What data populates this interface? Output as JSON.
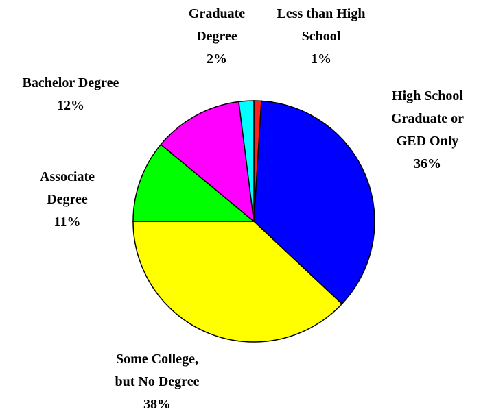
{
  "chart_data": {
    "type": "pie",
    "categories": [
      "Less than High\nSchool",
      "High School\nGraduate or\nGED Only",
      "Some College,\nbut No Degree",
      "Associate\nDegree",
      "Bachelor Degree",
      "Graduate\nDegree"
    ],
    "values": [
      1,
      36,
      38,
      11,
      12,
      2
    ],
    "value_labels": [
      "1%",
      "36%",
      "38%",
      "11%",
      "12%",
      "2%"
    ],
    "colors": [
      "#ff2020",
      "#0000ff",
      "#ffff00",
      "#00ff00",
      "#ff00ff",
      "#00ffff"
    ]
  }
}
